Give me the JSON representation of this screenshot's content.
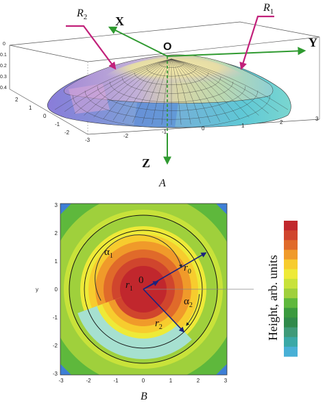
{
  "panel_a": {
    "label": "A",
    "axis_x": "X",
    "axis_y": "Y",
    "axis_z": "Z",
    "origin": "O",
    "r1_label": "R",
    "r1_sub": "1",
    "r2_label": "R",
    "r2_sub": "2",
    "z_ticks": [
      "0",
      "0.1",
      "0.2",
      "0.3",
      "0.4"
    ],
    "front_ticks": [
      "-3",
      "-2",
      "-1",
      "0",
      "1",
      "2",
      "3"
    ],
    "left_ticks": [
      "2",
      "1",
      "0",
      "-1",
      "-2"
    ]
  },
  "panel_b": {
    "label": "B",
    "x_ticks": [
      "-3",
      "-2",
      "-1",
      "0",
      "1",
      "2",
      "3"
    ],
    "y_ticks": [
      "3",
      "2",
      "1",
      "0",
      "-1",
      "-2",
      "-3"
    ],
    "ylabel": "y",
    "center_label": "0",
    "alpha1": "α",
    "alpha1_sub": "1",
    "alpha2": "α",
    "alpha2_sub": "2",
    "r0": "r",
    "r0_sub": "0",
    "r1": "r",
    "r1_sub": "1",
    "r2": "r",
    "r2_sub": "2",
    "colorbar_label": "Height, arb. units",
    "colorbar_colors": [
      "#c1272d",
      "#d0452d",
      "#e06a2a",
      "#f09a2a",
      "#f7cc2e",
      "#eeea38",
      "#c8e23a",
      "#9fd03c",
      "#5eb83c",
      "#3a9a3e",
      "#2f8a4a",
      "#3e9a78",
      "#3aa8a6",
      "#48b0d6"
    ]
  },
  "colors": {
    "axis_arrow": "#2f9a30",
    "label_arrow": "#c1207a",
    "vector_arrow": "#1a237e"
  }
}
